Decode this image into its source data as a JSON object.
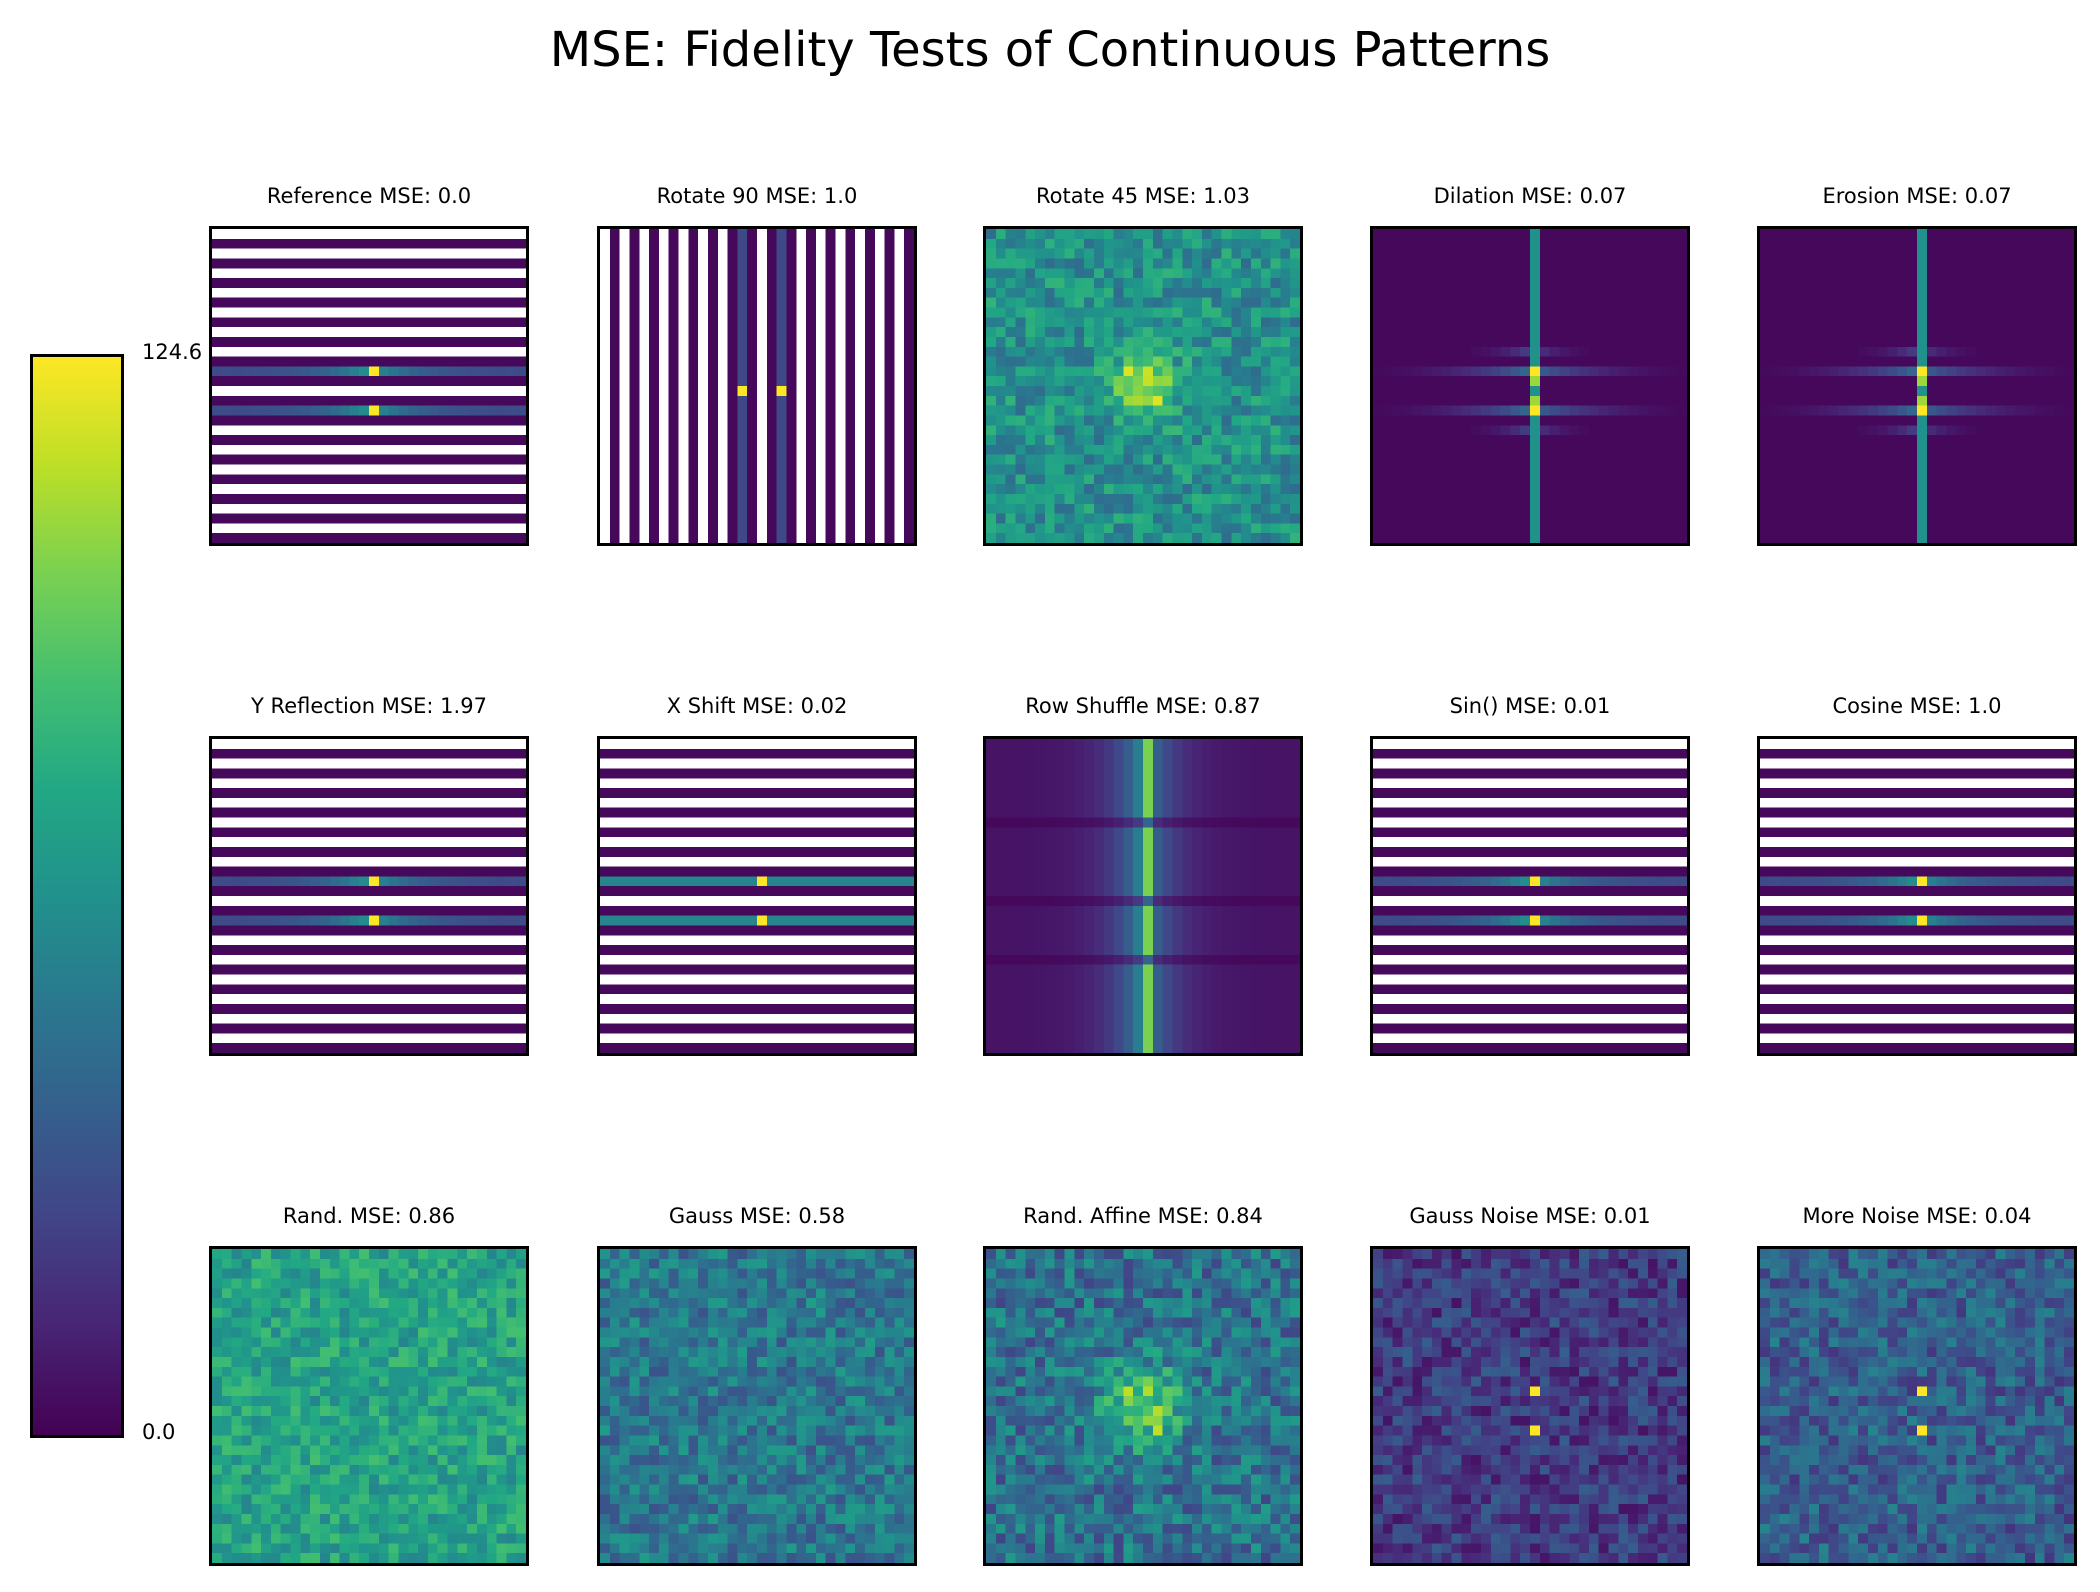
{
  "figure": {
    "title": "MSE: Fidelity Tests of Continuous Patterns"
  },
  "colorbar": {
    "colormap": "viridis",
    "max_label": "124.6",
    "min_label": "0.0",
    "range": [
      0.0,
      124.6
    ]
  },
  "chart_data": {
    "type": "heatmap",
    "grid": {
      "rows": 3,
      "cols": 5
    },
    "panels": [
      {
        "label": "Reference",
        "mse": "0.0",
        "title": "Reference  MSE: 0.0",
        "pattern": "h-stripes"
      },
      {
        "label": "Rotate 90",
        "mse": "1.0",
        "title": "Rotate 90  MSE: 1.0",
        "pattern": "v-stripes"
      },
      {
        "label": "Rotate 45",
        "mse": "1.03",
        "title": "Rotate 45  MSE: 1.03",
        "pattern": "rot45"
      },
      {
        "label": "Dilation",
        "mse": "0.07",
        "title": "Dilation  MSE: 0.07",
        "pattern": "spectrum-cross"
      },
      {
        "label": "Erosion",
        "mse": "0.07",
        "title": "Erosion  MSE: 0.07",
        "pattern": "spectrum-cross"
      },
      {
        "label": "Y Reflection",
        "mse": "1.97",
        "title": "Y Reflection  MSE: 1.97",
        "pattern": "h-stripes"
      },
      {
        "label": "X Shift",
        "mse": "0.02",
        "title": "X Shift  MSE: 0.02",
        "pattern": "h-stripes-shift"
      },
      {
        "label": "Row Shuffle",
        "mse": "0.87",
        "title": "Row Shuffle  MSE: 0.87",
        "pattern": "row-shuffle"
      },
      {
        "label": "Sin()",
        "mse": "0.01",
        "title": "Sin()  MSE: 0.01",
        "pattern": "h-stripes"
      },
      {
        "label": "Cosine",
        "mse": "1.0",
        "title": "Cosine  MSE: 1.0",
        "pattern": "h-stripes"
      },
      {
        "label": "Rand.",
        "mse": "0.86",
        "title": "Rand.  MSE: 0.86",
        "pattern": "noise-high"
      },
      {
        "label": "Gauss",
        "mse": "0.58",
        "title": "Gauss  MSE: 0.58",
        "pattern": "noise-mid"
      },
      {
        "label": "Rand. Affine",
        "mse": "0.84",
        "title": "Rand. Affine  MSE: 0.84",
        "pattern": "rand-affine"
      },
      {
        "label": "Gauss Noise",
        "mse": "0.01",
        "title": "Gauss Noise  MSE: 0.01",
        "pattern": "noise-low-dots"
      },
      {
        "label": "More Noise",
        "mse": "0.04",
        "title": "More Noise  MSE: 0.04",
        "pattern": "noise-mid-dots"
      }
    ]
  }
}
